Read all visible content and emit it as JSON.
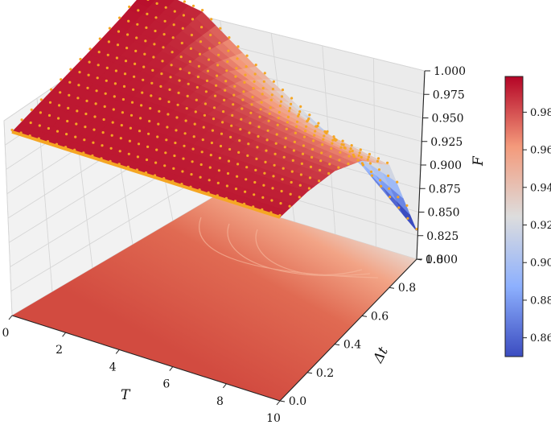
{
  "chart_data": {
    "type": "surface3d",
    "title": "",
    "xlabel": "T",
    "ylabel": "Δt",
    "zlabel": "F",
    "x_ticks": [
      "0",
      "2",
      "4",
      "6",
      "8",
      "10"
    ],
    "y_ticks": [
      "0.0",
      "0.2",
      "0.4",
      "0.6",
      "0.8",
      "1.0"
    ],
    "z_ticks": [
      "0.800",
      "0.825",
      "0.850",
      "0.875",
      "0.900",
      "0.925",
      "0.950",
      "0.975",
      "1.000"
    ],
    "xlim": [
      0,
      10
    ],
    "ylim": [
      0,
      1
    ],
    "zlim": [
      0.8,
      1.0
    ],
    "colorbar": {
      "ticks": [
        "0.86",
        "0.88",
        "0.90",
        "0.92",
        "0.94",
        "0.96",
        "0.98"
      ],
      "range": [
        0.85,
        0.999
      ],
      "colormap": "coolwarm"
    },
    "surface_profile": {
      "description_units": "fidelity F at sample points (T, Δt)",
      "T": [
        0,
        2,
        4,
        6,
        8,
        10
      ],
      "dt": [
        0.0,
        0.2,
        0.4,
        0.6,
        0.8,
        1.0
      ],
      "F": [
        [
          0.995,
          0.995,
          0.995,
          0.995,
          0.996,
          0.999
        ],
        [
          0.995,
          0.995,
          0.995,
          0.994,
          0.993,
          0.99
        ],
        [
          0.995,
          0.995,
          0.994,
          0.99,
          0.975,
          0.95
        ],
        [
          0.995,
          0.994,
          0.991,
          0.98,
          0.955,
          0.915
        ],
        [
          0.995,
          0.993,
          0.987,
          0.972,
          0.94,
          0.88
        ],
        [
          0.995,
          0.992,
          0.984,
          0.965,
          0.93,
          0.83
        ]
      ]
    },
    "scatter_series": {
      "color": "#f5a623",
      "marker": "dot"
    },
    "grid": true
  }
}
